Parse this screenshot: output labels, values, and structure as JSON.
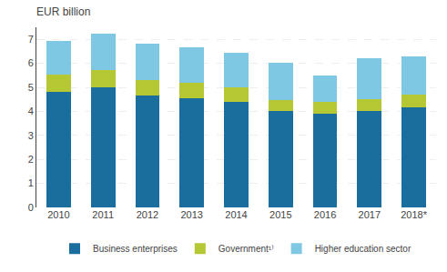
{
  "chart_data": {
    "type": "bar",
    "title": "EUR billion",
    "categories": [
      "2010",
      "2011",
      "2012",
      "2013",
      "2014",
      "2015",
      "2016",
      "2017",
      "2018*"
    ],
    "series": [
      {
        "name": "Business enterprises",
        "color": "#1a6e9e",
        "values": [
          4.8,
          5.0,
          4.65,
          4.55,
          4.4,
          4.02,
          3.9,
          4.02,
          4.15
        ]
      },
      {
        "name": "Government¹⁾",
        "color": "#b5c833",
        "values": [
          0.72,
          0.72,
          0.65,
          0.65,
          0.6,
          0.45,
          0.48,
          0.48,
          0.55
        ]
      },
      {
        "name": "Higher education sector",
        "color": "#7ec8e3",
        "values": [
          1.42,
          1.5,
          1.5,
          1.45,
          1.45,
          1.55,
          1.12,
          1.7,
          1.6
        ]
      }
    ],
    "ylim": [
      0,
      7.5
    ],
    "yticks": [
      0,
      1,
      2,
      3,
      4,
      5,
      6,
      7
    ],
    "grid": true,
    "stacked": true,
    "legend": "bottom"
  }
}
